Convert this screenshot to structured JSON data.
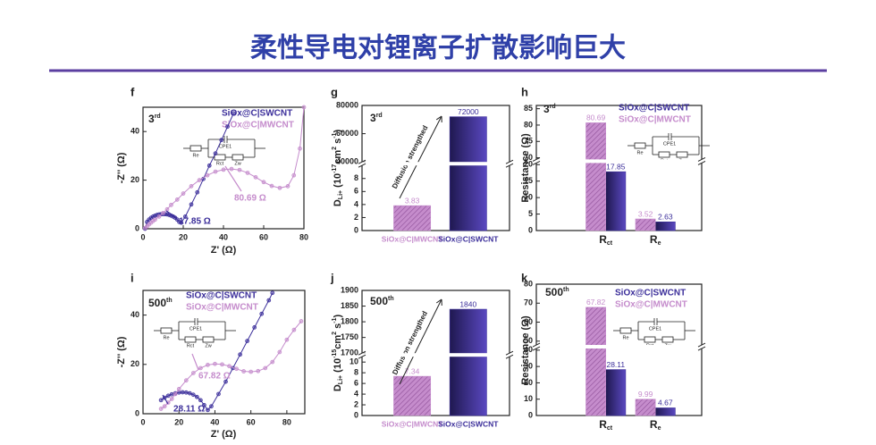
{
  "title": "柔性导电对锂离子扩散影响巨大",
  "chart_data": [
    {
      "panel": "f",
      "type": "line",
      "annotation": [
        "3",
        "rd"
      ],
      "xlabel": "Z' (Ω)",
      "ylabel": "-Z'' (Ω)",
      "xlim": [
        0,
        80
      ],
      "ylim": [
        0,
        50
      ],
      "xticks": [
        0,
        20,
        40,
        60,
        80
      ],
      "yticks": [
        0,
        20,
        40
      ],
      "circuit": [
        "Re",
        "CPE1",
        "Rct",
        "Zw"
      ],
      "notes": [
        {
          "text": "17.85 Ω",
          "color": "#3b2e9a"
        },
        {
          "text": "80.69 Ω",
          "color": "#c58ccc"
        }
      ],
      "series": [
        {
          "name": "SiOx@C|SWCNT",
          "color": "#3b2e9a",
          "x": [
            1,
            2,
            3,
            4,
            5,
            6,
            7,
            8,
            9,
            10,
            11,
            12,
            13,
            14,
            15,
            16,
            17,
            18,
            19,
            21,
            24,
            27,
            30,
            33,
            36,
            39,
            42,
            45
          ],
          "values": [
            0,
            2.8,
            3.8,
            4.5,
            5,
            5.4,
            5.7,
            5.9,
            6,
            6,
            6,
            5.9,
            5.7,
            5.4,
            5,
            4.5,
            3.8,
            2.8,
            2.5,
            5,
            10,
            15,
            20.5,
            26,
            31,
            36.5,
            42,
            47.5
          ]
        },
        {
          "name": "SiOx@C|MWCNT",
          "color": "#c58ccc",
          "x": [
            1,
            2,
            3,
            4,
            5,
            6,
            8,
            10,
            12,
            14,
            17,
            20,
            24,
            28,
            32,
            36,
            40,
            44,
            48,
            52,
            56,
            60,
            64,
            68,
            72,
            75,
            78,
            80
          ],
          "values": [
            0.3,
            1,
            1.8,
            2.5,
            3.2,
            3.8,
            5,
            6.5,
            8,
            9.8,
            12,
            14.5,
            17.5,
            20,
            22,
            23.5,
            24.3,
            24.6,
            24.2,
            23,
            21.2,
            19.2,
            17.6,
            16.8,
            17.5,
            22,
            33,
            50
          ]
        }
      ]
    },
    {
      "panel": "g",
      "type": "bar",
      "annotation": [
        "3",
        "rd"
      ],
      "arrow_label": "Diffusion strengthed",
      "ylabel": [
        "D",
        "Li+",
        " (10",
        "-17",
        "cm",
        "2",
        " s",
        "-1",
        ")"
      ],
      "categories": [
        "SiOx@C|MWCNT",
        "SiOx@C|SWCNT"
      ],
      "values": [
        3.83,
        72000
      ],
      "colors": [
        "#c58ccc",
        "#3b2e9a"
      ],
      "ylim": [
        0,
        80000
      ],
      "ybreak": [
        10,
        40000
      ],
      "yticks": [
        0,
        2,
        4,
        6,
        8,
        40000,
        60000,
        80000
      ]
    },
    {
      "panel": "h",
      "type": "grouped_bar",
      "annotation": [
        "3",
        "rd"
      ],
      "ylabel": "Resistance (Ω)",
      "circuit": [
        "Re",
        "CPE1",
        "Rct",
        "Zw"
      ],
      "categories": [
        [
          "R",
          "ct"
        ],
        [
          "R",
          "e"
        ]
      ],
      "series": [
        {
          "name": "SiOx@C|SWCNT",
          "color": "#3b2e9a",
          "values": [
            17.85,
            2.63
          ]
        },
        {
          "name": "SiOx@C|MWCNT",
          "color": "#c58ccc",
          "values": [
            80.69,
            3.52
          ]
        }
      ],
      "ylim": [
        0,
        86
      ],
      "ybreak": [
        20.5,
        69.5
      ],
      "yticks": [
        0,
        5,
        10,
        15,
        20,
        70,
        75,
        80,
        85
      ]
    },
    {
      "panel": "i",
      "type": "line",
      "annotation": [
        "500",
        "th"
      ],
      "xlabel": "Z' (Ω)",
      "ylabel": "-Z'' (Ω)",
      "xlim": [
        0,
        90
      ],
      "ylim": [
        0,
        50
      ],
      "xticks": [
        0,
        20,
        40,
        60,
        80
      ],
      "yticks": [
        0,
        20,
        40
      ],
      "circuit": [
        "Re",
        "CPE1",
        "Rct",
        "Zw"
      ],
      "notes": [
        {
          "text": "67.82 Ω",
          "color": "#c58ccc"
        },
        {
          "text": "28.11 Ω",
          "color": "#3b2e9a"
        }
      ],
      "series": [
        {
          "name": "SiOx@C|SWCNT",
          "color": "#3b2e9a",
          "x": [
            10,
            12,
            14,
            16,
            18,
            20,
            22,
            24,
            26,
            28,
            30,
            32,
            34,
            36,
            38,
            42,
            46,
            50,
            54,
            58,
            62,
            66,
            70,
            72
          ],
          "values": [
            5.5,
            6.5,
            7.3,
            7.9,
            8.3,
            8.6,
            8.7,
            8.6,
            8.3,
            7.7,
            6.8,
            5.5,
            3.5,
            1.5,
            3,
            8,
            13,
            18.5,
            24,
            29.5,
            35,
            40.5,
            46,
            49
          ]
        },
        {
          "name": "SiOx@C|MWCNT",
          "color": "#c58ccc",
          "x": [
            10,
            12,
            14,
            16,
            18,
            20,
            24,
            28,
            32,
            36,
            40,
            44,
            48,
            52,
            56,
            60,
            64,
            68,
            72,
            76,
            80,
            84,
            88
          ],
          "values": [
            2,
            3,
            4.5,
            6,
            8,
            10,
            13.5,
            16.5,
            18.5,
            19.8,
            20.2,
            20,
            19.3,
            18.2,
            17.2,
            17,
            17.3,
            18.5,
            21,
            25,
            30,
            34,
            37.5
          ]
        }
      ]
    },
    {
      "panel": "j",
      "type": "bar",
      "annotation": [
        "500",
        "th"
      ],
      "arrow_label": "Diffusion strengthed",
      "ylabel": [
        "D",
        "Li+",
        " (10",
        "-15",
        "cm",
        "2",
        " s",
        "-1",
        ")"
      ],
      "categories": [
        "SiOx@C|MWCNT",
        "SiOx@C|SWCNT"
      ],
      "values": [
        7.34,
        1840
      ],
      "colors": [
        "#c58ccc",
        "#3b2e9a"
      ],
      "ylim": [
        0,
        1900
      ],
      "ybreak": [
        11,
        1700
      ],
      "yticks": [
        0,
        2,
        4,
        6,
        8,
        10,
        1700,
        1750,
        1800,
        1850,
        1900
      ]
    },
    {
      "panel": "k",
      "type": "grouped_bar",
      "annotation": [
        "500",
        "th"
      ],
      "ylabel": "Resistance (Ω)",
      "circuit": [
        "Re",
        "CPE1",
        "Rct",
        "Zw"
      ],
      "categories": [
        [
          "R",
          "ct"
        ],
        [
          "R",
          "e"
        ]
      ],
      "series": [
        {
          "name": "SiOx@C|SWCNT",
          "color": "#3b2e9a",
          "values": [
            28.11,
            4.67
          ]
        },
        {
          "name": "SiOx@C|MWCNT",
          "color": "#c58ccc",
          "values": [
            67.82,
            9.99
          ]
        }
      ],
      "ylim": [
        0,
        80
      ],
      "ybreak": [
        41,
        48
      ],
      "yticks": [
        0,
        10,
        20,
        30,
        40,
        50,
        60,
        70,
        80
      ]
    }
  ]
}
